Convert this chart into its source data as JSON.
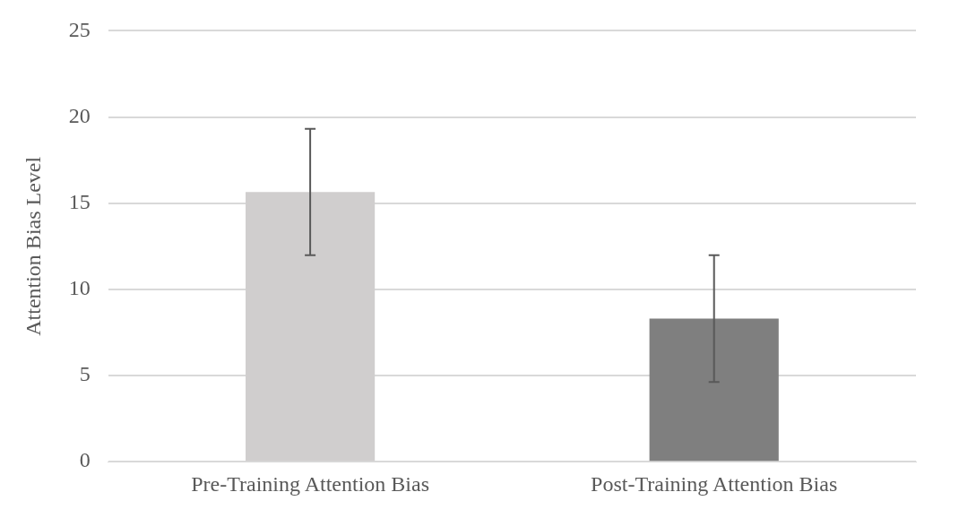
{
  "chart_data": {
    "type": "bar",
    "ylabel": "Attention Bias Level",
    "categories": [
      "Pre-Training Attention Bias",
      "Post-Training Attention Bias"
    ],
    "values": [
      15.65,
      8.3
    ],
    "colors": [
      "#d0cece",
      "#7f7f7f"
    ],
    "errors": [
      3.67,
      3.68
    ],
    "ylim": [
      0,
      25
    ],
    "yticks": [
      0,
      5,
      10,
      15,
      20,
      25
    ],
    "grid": "y"
  }
}
